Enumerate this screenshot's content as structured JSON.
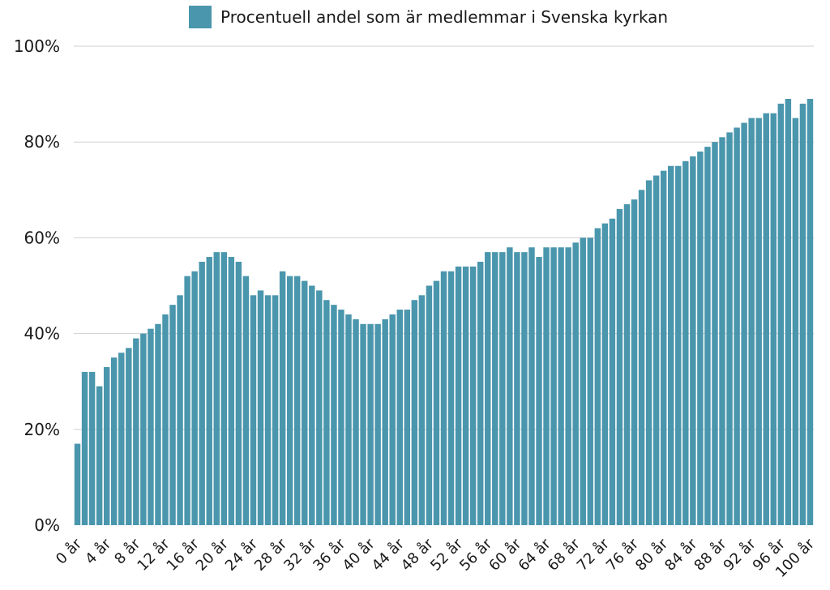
{
  "chart_data": {
    "type": "bar",
    "legend": {
      "label": "Procentuell andel som är medlemmar i Svenska kyrkan",
      "color": "#4a96ad"
    },
    "bar_color": "#4a96ad",
    "ylim": [
      0,
      100
    ],
    "yticks": [
      0,
      20,
      40,
      60,
      80,
      100
    ],
    "ytick_labels": [
      "0%",
      "20%",
      "40%",
      "60%",
      "80%",
      "100%"
    ],
    "grid": true,
    "legend_position": "top-center",
    "categories": [
      "0 år",
      "1 år",
      "2 år",
      "3 år",
      "4 år",
      "5 år",
      "6 år",
      "7 år",
      "8 år",
      "9 år",
      "10 år",
      "11 år",
      "12 år",
      "13 år",
      "14 år",
      "15 år",
      "16 år",
      "17 år",
      "18 år",
      "19 år",
      "20 år",
      "21 år",
      "22 år",
      "23 år",
      "24 år",
      "25 år",
      "26 år",
      "27 år",
      "28 år",
      "29 år",
      "30 år",
      "31 år",
      "32 år",
      "33 år",
      "34 år",
      "35 år",
      "36 år",
      "37 år",
      "38 år",
      "39 år",
      "40 år",
      "41 år",
      "42 år",
      "43 år",
      "44 år",
      "45 år",
      "46 år",
      "47 år",
      "48 år",
      "49 år",
      "50 år",
      "51 år",
      "52 år",
      "53 år",
      "54 år",
      "55 år",
      "56 år",
      "57 år",
      "58 år",
      "59 år",
      "60 år",
      "61 år",
      "62 år",
      "63 år",
      "64 år",
      "65 år",
      "66 år",
      "67 år",
      "68 år",
      "69 år",
      "70 år",
      "71 år",
      "72 år",
      "73 år",
      "74 år",
      "75 år",
      "76 år",
      "77 år",
      "78 år",
      "79 år",
      "80 år",
      "81 år",
      "82 år",
      "83 år",
      "84 år",
      "85 år",
      "86 år",
      "87 år",
      "88 år",
      "89 år",
      "90 år",
      "91 år",
      "92 år",
      "93 år",
      "94 år",
      "95 år",
      "96 år",
      "97 år",
      "98 år",
      "99 år",
      "100 år"
    ],
    "xtick_labels": [
      "0 år",
      "4 år",
      "8 år",
      "12 år",
      "16 år",
      "20 år",
      "24 år",
      "28 år",
      "32 år",
      "36 år",
      "40 år",
      "44 år",
      "48 år",
      "52 år",
      "56 år",
      "60 år",
      "64 år",
      "68 år",
      "72 år",
      "76 år",
      "80 år",
      "84 år",
      "88 år",
      "92 år",
      "96 år",
      "100 år"
    ],
    "values": [
      17,
      32,
      32,
      29,
      33,
      35,
      36,
      37,
      39,
      40,
      41,
      42,
      44,
      46,
      48,
      52,
      53,
      55,
      56,
      57,
      57,
      56,
      55,
      52,
      48,
      49,
      48,
      48,
      53,
      52,
      52,
      51,
      50,
      49,
      47,
      46,
      45,
      44,
      43,
      42,
      42,
      42,
      43,
      44,
      45,
      45,
      47,
      48,
      50,
      51,
      53,
      53,
      54,
      54,
      54,
      55,
      57,
      57,
      57,
      58,
      57,
      57,
      58,
      56,
      58,
      58,
      58,
      58,
      59,
      60,
      60,
      62,
      63,
      64,
      66,
      67,
      68,
      70,
      72,
      73,
      74,
      75,
      75,
      76,
      77,
      78,
      79,
      80,
      81,
      82,
      83,
      84,
      85,
      85,
      86,
      86,
      88,
      89,
      85,
      88,
      89
    ]
  }
}
